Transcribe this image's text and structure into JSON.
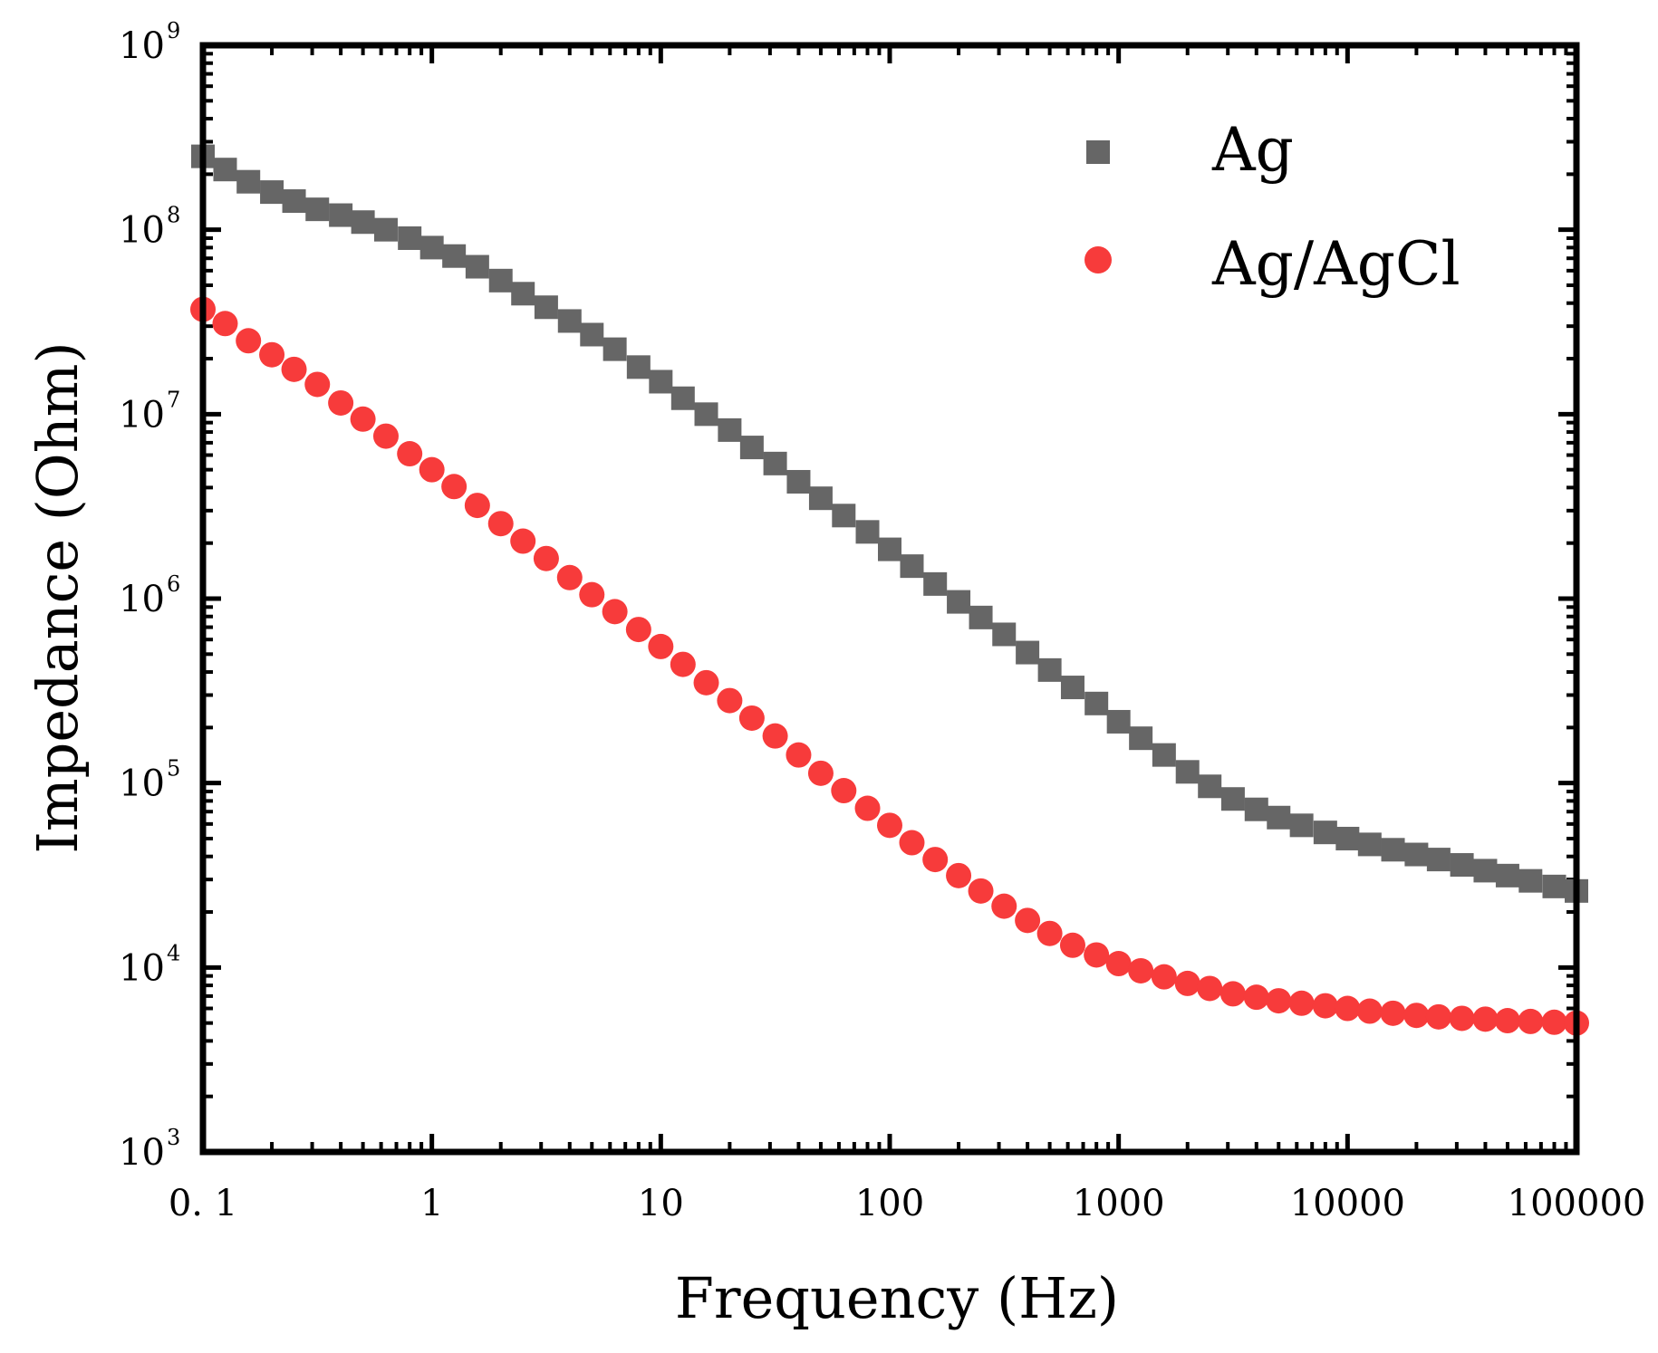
{
  "chart_data": {
    "type": "scatter",
    "title": "",
    "xlabel": "Frequency (Hz)",
    "ylabel": "Impedance (Ohm)",
    "xscale": "log",
    "yscale": "log",
    "xlim": [
      0.1,
      100000
    ],
    "ylim": [
      1000,
      1000000000
    ],
    "x_ticks": [
      0.1,
      1,
      10,
      100,
      1000,
      10000,
      100000
    ],
    "x_tick_labels": [
      "0. 1",
      "1",
      "10",
      "100",
      "1000",
      "10000",
      "100000"
    ],
    "y_ticks": [
      1000,
      10000,
      100000,
      1000000,
      10000000,
      100000000,
      1000000000
    ],
    "y_tick_labels": [
      {
        "base": "10",
        "exp": "3"
      },
      {
        "base": "10",
        "exp": "4"
      },
      {
        "base": "10",
        "exp": "5"
      },
      {
        "base": "10",
        "exp": "6"
      },
      {
        "base": "10",
        "exp": "7"
      },
      {
        "base": "10",
        "exp": "8"
      },
      {
        "base": "10",
        "exp": "9"
      }
    ],
    "grid": false,
    "legend_position": "top-right",
    "series": [
      {
        "name": "Ag",
        "marker": "square",
        "color": "#666666",
        "x": [
          0.1,
          0.125,
          0.158,
          0.2,
          0.25,
          0.316,
          0.4,
          0.5,
          0.63,
          0.8,
          1,
          1.25,
          1.58,
          2,
          2.5,
          3.16,
          4,
          5,
          6.3,
          8,
          10,
          12.5,
          15.8,
          20,
          25,
          31.6,
          40,
          50,
          63,
          80,
          100,
          125,
          158,
          200,
          250,
          316,
          400,
          500,
          630,
          800,
          1000,
          1250,
          1580,
          2000,
          2500,
          3160,
          4000,
          5000,
          6300,
          8000,
          10000,
          12500,
          15800,
          20000,
          25000,
          31600,
          40000,
          50000,
          63000,
          80000,
          100000
        ],
        "y": [
          250000000.0,
          212000000.0,
          182000000.0,
          160000000.0,
          143000000.0,
          129000000.0,
          120000000.0,
          110000000.0,
          100000000.0,
          90000000.0,
          80000000.0,
          72000000.0,
          63000000.0,
          53000000.0,
          45000000.0,
          38000000.0,
          32000000.0,
          27000000.0,
          22500000.0,
          18000000.0,
          15000000.0,
          12200000.0,
          10000000.0,
          8200000.0,
          6600000.0,
          5400000.0,
          4300000.0,
          3500000.0,
          2820000.0,
          2300000.0,
          1850000.0,
          1500000.0,
          1200000.0,
          960000.0,
          790000.0,
          640000.0,
          510000.0,
          410000.0,
          330000.0,
          270000.0,
          215000.0,
          175000.0,
          142000.0,
          115000.0,
          96000.0,
          82000.0,
          72000.0,
          65000.0,
          59000.0,
          54000.0,
          50000.0,
          46500.0,
          43500.0,
          41000.0,
          38500.0,
          36000.0,
          33500.0,
          31500.0,
          29500.0,
          27500.0,
          26000.0
        ]
      },
      {
        "name": "Ag/AgCl",
        "marker": "circle",
        "color": "#f73b3b",
        "x": [
          0.1,
          0.125,
          0.158,
          0.2,
          0.25,
          0.316,
          0.4,
          0.5,
          0.63,
          0.8,
          1,
          1.25,
          1.58,
          2,
          2.5,
          3.16,
          4,
          5,
          6.3,
          8,
          10,
          12.5,
          15.8,
          20,
          25,
          31.6,
          40,
          50,
          63,
          80,
          100,
          125,
          158,
          200,
          250,
          316,
          400,
          500,
          630,
          800,
          1000,
          1250,
          1580,
          2000,
          2500,
          3160,
          4000,
          5000,
          6300,
          8000,
          10000,
          12500,
          15800,
          20000,
          25000,
          31600,
          40000,
          50000,
          63000,
          80000,
          100000
        ],
        "y": [
          37000000.0,
          31000000.0,
          25000000.0,
          21000000.0,
          17500000.0,
          14500000.0,
          11500000.0,
          9400000.0,
          7600000.0,
          6100000.0,
          5000000.0,
          4050000.0,
          3200000.0,
          2550000.0,
          2050000.0,
          1650000.0,
          1300000.0,
          1050000.0,
          850000.0,
          680000.0,
          550000.0,
          440000.0,
          350000.0,
          280000.0,
          225000.0,
          180000.0,
          142000.0,
          113000.0,
          91000.0,
          73000.0,
          59000.0,
          47500.0,
          38500.0,
          31500.0,
          26000.0,
          21500.0,
          18000.0,
          15300.0,
          13200.0,
          11700.0,
          10500.0,
          9600.0,
          8900.0,
          8200.0,
          7700.0,
          7200.0,
          6900.0,
          6600.0,
          6400.0,
          6200.0,
          6000.0,
          5800.0,
          5650.0,
          5500.0,
          5400.0,
          5300.0,
          5250.0,
          5150.0,
          5100.0,
          5050.0,
          5000.0
        ]
      }
    ]
  }
}
